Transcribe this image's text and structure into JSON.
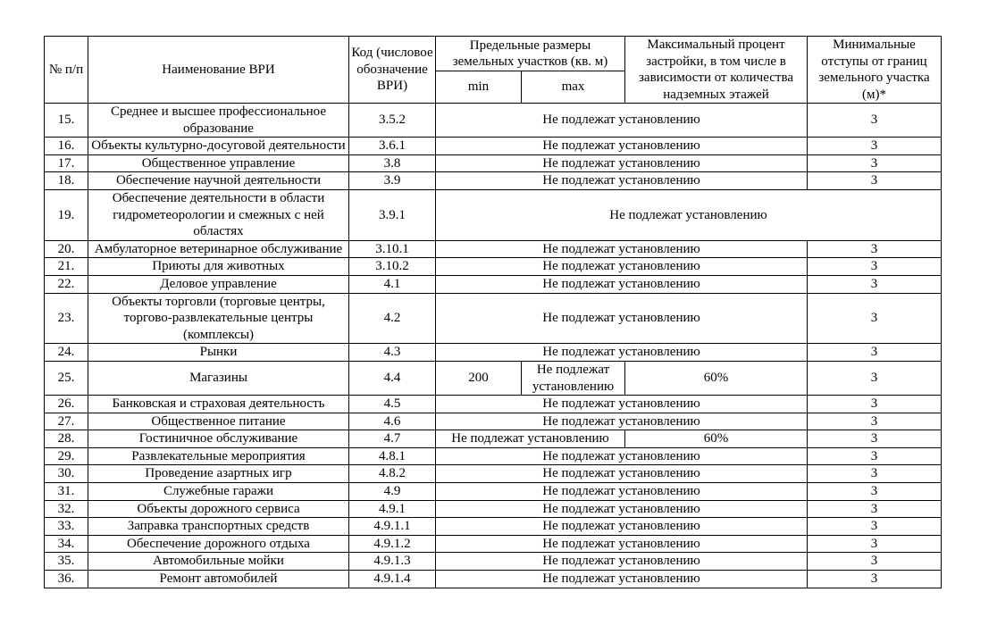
{
  "headers": {
    "num": "№ п/п",
    "name": "Наименование ВРИ",
    "code": "Код (числовое обозначение ВРИ)",
    "sizes": "Предельные размеры земельных участков (кв. м)",
    "min": "min",
    "max": "max",
    "percent": "Максимальный процент застройки, в том числе в зависимости от количества надземных этажей",
    "setback": "Минимальные отступы от границ земельного участка (м)*"
  },
  "rows": [
    {
      "num": "15.",
      "name": "Среднее и высшее профессиональное образование",
      "code": "3.5.2",
      "kind": "merged",
      "merged": "Не подлежат установлению",
      "setback": "3"
    },
    {
      "num": "16.",
      "name": "Объекты культурно-досуговой деятельности",
      "code": "3.6.1",
      "kind": "merged",
      "merged": "Не подлежат установлению",
      "setback": "3"
    },
    {
      "num": "17.",
      "name": "Общественное управление",
      "code": "3.8",
      "kind": "merged",
      "merged": "Не подлежат установлению",
      "setback": "3"
    },
    {
      "num": "18.",
      "name": "Обеспечение научной деятельности",
      "code": "3.9",
      "kind": "merged",
      "merged": "Не подлежат установлению",
      "setback": "3"
    },
    {
      "num": "19.",
      "name": "Обеспечение деятельности в области гидрометеорологии и смежных с ней областях",
      "code": "3.9.1",
      "kind": "all",
      "merged": "Не подлежат установлению"
    },
    {
      "num": "20.",
      "name": "Амбулаторное ветеринарное обслуживание",
      "code": "3.10.1",
      "kind": "merged",
      "merged": "Не подлежат установлению",
      "setback": "3"
    },
    {
      "num": "21.",
      "name": "Приюты для животных",
      "code": "3.10.2",
      "kind": "merged",
      "merged": "Не подлежат установлению",
      "setback": "3"
    },
    {
      "num": "22.",
      "name": "Деловое управление",
      "code": "4.1",
      "kind": "merged",
      "merged": "Не подлежат установлению",
      "setback": "3"
    },
    {
      "num": "23.",
      "name": "Объекты торговли (торговые центры, торгово-развлекательные центры (комплексы)",
      "code": "4.2",
      "kind": "merged",
      "merged": "Не подлежат установлению",
      "setback": "3"
    },
    {
      "num": "24.",
      "name": "Рынки",
      "code": "4.3",
      "kind": "merged",
      "merged": "Не подлежат установлению",
      "setback": "3"
    },
    {
      "num": "25.",
      "name": "Магазины",
      "code": "4.4",
      "kind": "split",
      "min": "200",
      "max": "Не подлежат установлению",
      "percent": "60%",
      "setback": "3"
    },
    {
      "num": "26.",
      "name": "Банковская и страховая деятельность",
      "code": "4.5",
      "kind": "merged",
      "merged": "Не подлежат установлению",
      "setback": "3"
    },
    {
      "num": "27.",
      "name": "Общественное питание",
      "code": "4.6",
      "kind": "merged",
      "merged": "Не подлежат установлению",
      "setback": "3"
    },
    {
      "num": "28.",
      "name": "Гостиничное обслуживание",
      "code": "4.7",
      "kind": "sizes",
      "sizes": "Не подлежат установлению",
      "percent": "60%",
      "setback": "3"
    },
    {
      "num": "29.",
      "name": "Развлекательные мероприятия",
      "code": "4.8.1",
      "kind": "merged",
      "merged": "Не подлежат установлению",
      "setback": "3"
    },
    {
      "num": "30.",
      "name": "Проведение азартных игр",
      "code": "4.8.2",
      "kind": "merged",
      "merged": "Не подлежат установлению",
      "setback": "3"
    },
    {
      "num": "31.",
      "name": "Служебные гаражи",
      "code": "4.9",
      "kind": "merged",
      "merged": "Не подлежат установлению",
      "setback": "3"
    },
    {
      "num": "32.",
      "name": "Объекты дорожного сервиса",
      "code": "4.9.1",
      "kind": "merged",
      "merged": "Не подлежат установлению",
      "setback": "3"
    },
    {
      "num": "33.",
      "name": "Заправка транспортных средств",
      "code": "4.9.1.1",
      "kind": "merged",
      "merged": "Не подлежат установлению",
      "setback": "3"
    },
    {
      "num": "34.",
      "name": "Обеспечение дорожного отдыха",
      "code": "4.9.1.2",
      "kind": "merged",
      "merged": "Не подлежат установлению",
      "setback": "3"
    },
    {
      "num": "35.",
      "name": "Автомобильные мойки",
      "code": "4.9.1.3",
      "kind": "merged",
      "merged": "Не подлежат установлению",
      "setback": "3"
    },
    {
      "num": "36.",
      "name": "Ремонт автомобилей",
      "code": "4.9.1.4",
      "kind": "merged",
      "merged": "Не подлежат установлению",
      "setback": "3"
    }
  ]
}
